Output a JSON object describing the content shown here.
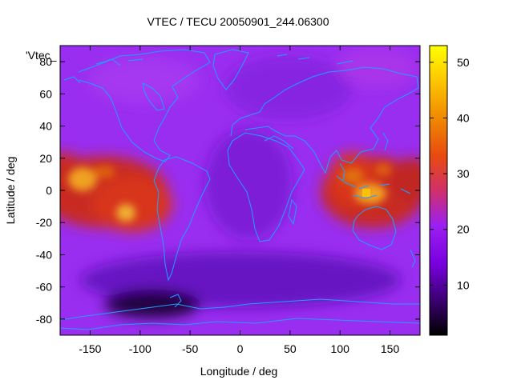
{
  "chart_data": {
    "type": "heatmap",
    "title": "VTEC / TECU 20050901_244.06300",
    "xlabel": "Longitude / deg",
    "ylabel": "Latitude / deg",
    "series_key_label": "'Vtec_",
    "xlim": [
      -180,
      180
    ],
    "ylim": [
      -90,
      90
    ],
    "xticks": [
      -150,
      -100,
      -50,
      0,
      50,
      100,
      150
    ],
    "yticks": [
      -80,
      -60,
      -40,
      -20,
      0,
      20,
      40,
      60,
      80
    ],
    "colorbar": {
      "range": [
        1,
        53
      ],
      "ticks": [
        10,
        20,
        30,
        40,
        50
      ],
      "palette": [
        "#000000",
        "#3a0070",
        "#7a00e0",
        "#9c20f0",
        "#d0306a",
        "#e84a10",
        "#f08a00",
        "#ffd000",
        "#ffff00"
      ]
    },
    "grid": false,
    "colors": {
      "background": "#9a2ef0",
      "coastline": "#1ea0ff"
    },
    "peaks": [
      {
        "lon": -158,
        "lat": 5,
        "vtec": 42
      },
      {
        "lon": -113,
        "lat": -13,
        "vtec": 45
      },
      {
        "lon": 128,
        "lat": 0,
        "vtec": 48
      }
    ]
  }
}
